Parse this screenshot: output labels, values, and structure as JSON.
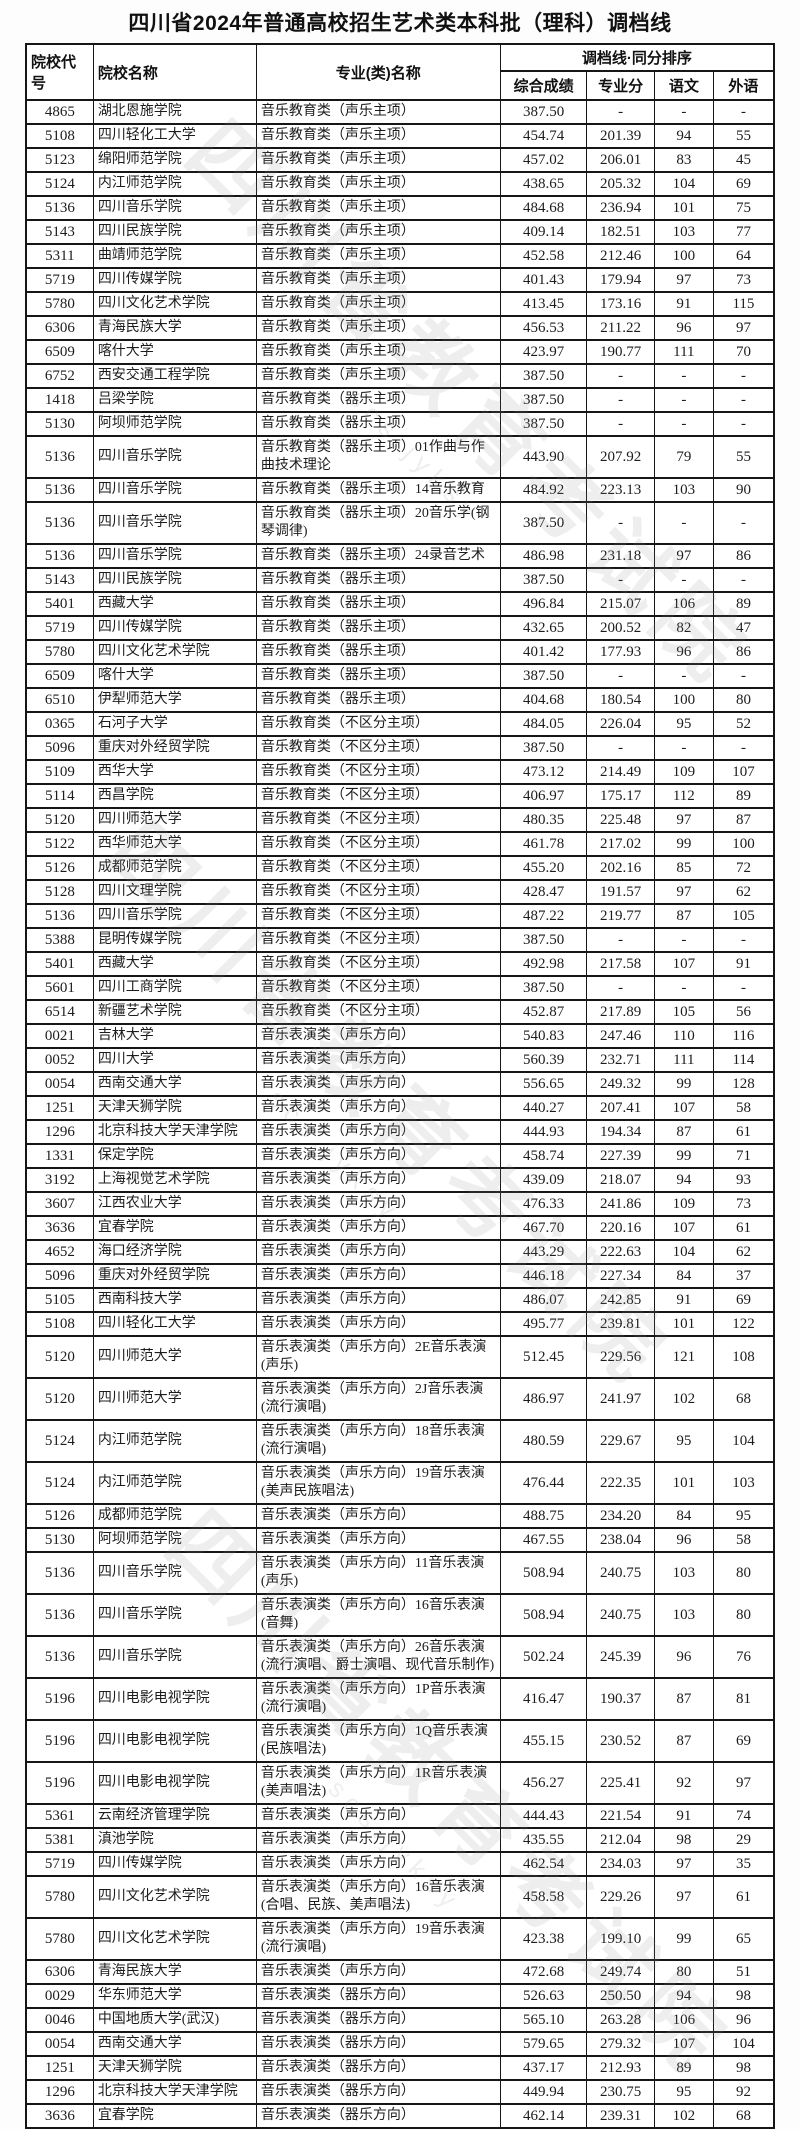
{
  "page": {
    "title": "四川省2024年普通高校招生艺术类本科批（理科）调档线"
  },
  "watermark": {
    "cn": "四川省教育考试院",
    "en": "scs.jyksy"
  },
  "table": {
    "headers": {
      "col_code": "院校代号",
      "col_name": "院校名称",
      "col_major": "专业(类)名称",
      "group": "调档线·同分排序",
      "sub": [
        "综合成绩",
        "专业分",
        "语文",
        "外语"
      ]
    },
    "rows": [
      [
        "4865",
        "湖北恩施学院",
        "音乐教育类（声乐主项）",
        "387.50",
        "-",
        "-",
        "-"
      ],
      [
        "5108",
        "四川轻化工大学",
        "音乐教育类（声乐主项）",
        "454.74",
        "201.39",
        "94",
        "55"
      ],
      [
        "5123",
        "绵阳师范学院",
        "音乐教育类（声乐主项）",
        "457.02",
        "206.01",
        "83",
        "45"
      ],
      [
        "5124",
        "内江师范学院",
        "音乐教育类（声乐主项）",
        "438.65",
        "205.32",
        "104",
        "69"
      ],
      [
        "5136",
        "四川音乐学院",
        "音乐教育类（声乐主项）",
        "484.68",
        "236.94",
        "101",
        "75"
      ],
      [
        "5143",
        "四川民族学院",
        "音乐教育类（声乐主项）",
        "409.14",
        "182.51",
        "103",
        "77"
      ],
      [
        "5311",
        "曲靖师范学院",
        "音乐教育类（声乐主项）",
        "452.58",
        "212.46",
        "100",
        "64"
      ],
      [
        "5719",
        "四川传媒学院",
        "音乐教育类（声乐主项）",
        "401.43",
        "179.94",
        "97",
        "73"
      ],
      [
        "5780",
        "四川文化艺术学院",
        "音乐教育类（声乐主项）",
        "413.45",
        "173.16",
        "91",
        "115"
      ],
      [
        "6306",
        "青海民族大学",
        "音乐教育类（声乐主项）",
        "456.53",
        "211.22",
        "96",
        "97"
      ],
      [
        "6509",
        "喀什大学",
        "音乐教育类（声乐主项）",
        "423.97",
        "190.77",
        "111",
        "70"
      ],
      [
        "6752",
        "西安交通工程学院",
        "音乐教育类（声乐主项）",
        "387.50",
        "-",
        "-",
        "-"
      ],
      [
        "1418",
        "吕梁学院",
        "音乐教育类（器乐主项）",
        "387.50",
        "-",
        "-",
        "-"
      ],
      [
        "5130",
        "阿坝师范学院",
        "音乐教育类（器乐主项）",
        "387.50",
        "-",
        "-",
        "-"
      ],
      [
        "5136",
        "四川音乐学院",
        "音乐教育类（器乐主项）01作曲与作曲技术理论",
        "443.90",
        "207.92",
        "79",
        "55"
      ],
      [
        "5136",
        "四川音乐学院",
        "音乐教育类（器乐主项）14音乐教育",
        "484.92",
        "223.13",
        "103",
        "90"
      ],
      [
        "5136",
        "四川音乐学院",
        "音乐教育类（器乐主项）20音乐学(钢琴调律)",
        "387.50",
        "-",
        "-",
        "-"
      ],
      [
        "5136",
        "四川音乐学院",
        "音乐教育类（器乐主项）24录音艺术",
        "486.98",
        "231.18",
        "97",
        "86"
      ],
      [
        "5143",
        "四川民族学院",
        "音乐教育类（器乐主项）",
        "387.50",
        "-",
        "-",
        "-"
      ],
      [
        "5401",
        "西藏大学",
        "音乐教育类（器乐主项）",
        "496.84",
        "215.07",
        "106",
        "89"
      ],
      [
        "5719",
        "四川传媒学院",
        "音乐教育类（器乐主项）",
        "432.65",
        "200.52",
        "82",
        "47"
      ],
      [
        "5780",
        "四川文化艺术学院",
        "音乐教育类（器乐主项）",
        "401.42",
        "177.93",
        "96",
        "86"
      ],
      [
        "6509",
        "喀什大学",
        "音乐教育类（器乐主项）",
        "387.50",
        "-",
        "-",
        "-"
      ],
      [
        "6510",
        "伊犁师范大学",
        "音乐教育类（器乐主项）",
        "404.68",
        "180.54",
        "100",
        "80"
      ],
      [
        "0365",
        "石河子大学",
        "音乐教育类（不区分主项）",
        "484.05",
        "226.04",
        "95",
        "52"
      ],
      [
        "5096",
        "重庆对外经贸学院",
        "音乐教育类（不区分主项）",
        "387.50",
        "-",
        "-",
        "-"
      ],
      [
        "5109",
        "西华大学",
        "音乐教育类（不区分主项）",
        "473.12",
        "214.49",
        "109",
        "107"
      ],
      [
        "5114",
        "西昌学院",
        "音乐教育类（不区分主项）",
        "406.97",
        "175.17",
        "112",
        "89"
      ],
      [
        "5120",
        "四川师范大学",
        "音乐教育类（不区分主项）",
        "480.35",
        "225.48",
        "97",
        "87"
      ],
      [
        "5122",
        "西华师范大学",
        "音乐教育类（不区分主项）",
        "461.78",
        "217.02",
        "99",
        "100"
      ],
      [
        "5126",
        "成都师范学院",
        "音乐教育类（不区分主项）",
        "455.20",
        "202.16",
        "85",
        "72"
      ],
      [
        "5128",
        "四川文理学院",
        "音乐教育类（不区分主项）",
        "428.47",
        "191.57",
        "97",
        "62"
      ],
      [
        "5136",
        "四川音乐学院",
        "音乐教育类（不区分主项）",
        "487.22",
        "219.77",
        "87",
        "105"
      ],
      [
        "5388",
        "昆明传媒学院",
        "音乐教育类（不区分主项）",
        "387.50",
        "-",
        "-",
        "-"
      ],
      [
        "5401",
        "西藏大学",
        "音乐教育类（不区分主项）",
        "492.98",
        "217.58",
        "107",
        "91"
      ],
      [
        "5601",
        "四川工商学院",
        "音乐教育类（不区分主项）",
        "387.50",
        "-",
        "-",
        "-"
      ],
      [
        "6514",
        "新疆艺术学院",
        "音乐教育类（不区分主项）",
        "452.87",
        "217.89",
        "105",
        "56"
      ],
      [
        "0021",
        "吉林大学",
        "音乐表演类（声乐方向）",
        "540.83",
        "247.46",
        "110",
        "116"
      ],
      [
        "0052",
        "四川大学",
        "音乐表演类（声乐方向）",
        "560.39",
        "232.71",
        "111",
        "114"
      ],
      [
        "0054",
        "西南交通大学",
        "音乐表演类（声乐方向）",
        "556.65",
        "249.32",
        "99",
        "128"
      ],
      [
        "1251",
        "天津天狮学院",
        "音乐表演类（声乐方向）",
        "440.27",
        "207.41",
        "107",
        "58"
      ],
      [
        "1296",
        "北京科技大学天津学院",
        "音乐表演类（声乐方向）",
        "444.93",
        "194.34",
        "87",
        "61"
      ],
      [
        "1331",
        "保定学院",
        "音乐表演类（声乐方向）",
        "458.74",
        "227.39",
        "99",
        "71"
      ],
      [
        "3192",
        "上海视觉艺术学院",
        "音乐表演类（声乐方向）",
        "439.09",
        "218.07",
        "94",
        "93"
      ],
      [
        "3607",
        "江西农业大学",
        "音乐表演类（声乐方向）",
        "476.33",
        "241.86",
        "109",
        "73"
      ],
      [
        "3636",
        "宜春学院",
        "音乐表演类（声乐方向）",
        "467.70",
        "220.16",
        "107",
        "61"
      ],
      [
        "4652",
        "海口经济学院",
        "音乐表演类（声乐方向）",
        "443.29",
        "222.63",
        "104",
        "62"
      ],
      [
        "5096",
        "重庆对外经贸学院",
        "音乐表演类（声乐方向）",
        "446.18",
        "227.34",
        "84",
        "37"
      ],
      [
        "5105",
        "西南科技大学",
        "音乐表演类（声乐方向）",
        "486.07",
        "242.85",
        "91",
        "69"
      ],
      [
        "5108",
        "四川轻化工大学",
        "音乐表演类（声乐方向）",
        "495.77",
        "239.81",
        "101",
        "122"
      ],
      [
        "5120",
        "四川师范大学",
        "音乐表演类（声乐方向）2E音乐表演(声乐)",
        "512.45",
        "229.56",
        "121",
        "108"
      ],
      [
        "5120",
        "四川师范大学",
        "音乐表演类（声乐方向）2J音乐表演(流行演唱)",
        "486.97",
        "241.97",
        "102",
        "68"
      ],
      [
        "5124",
        "内江师范学院",
        "音乐表演类（声乐方向）18音乐表演(流行演唱)",
        "480.59",
        "229.67",
        "95",
        "104"
      ],
      [
        "5124",
        "内江师范学院",
        "音乐表演类（声乐方向）19音乐表演(美声民族唱法)",
        "476.44",
        "222.35",
        "101",
        "103"
      ],
      [
        "5126",
        "成都师范学院",
        "音乐表演类（声乐方向）",
        "488.75",
        "234.20",
        "84",
        "95"
      ],
      [
        "5130",
        "阿坝师范学院",
        "音乐表演类（声乐方向）",
        "467.55",
        "238.04",
        "96",
        "58"
      ],
      [
        "5136",
        "四川音乐学院",
        "音乐表演类（声乐方向）11音乐表演(声乐)",
        "508.94",
        "240.75",
        "103",
        "80"
      ],
      [
        "5136",
        "四川音乐学院",
        "音乐表演类（声乐方向）16音乐表演(音舞)",
        "508.94",
        "240.75",
        "103",
        "80"
      ],
      [
        "5136",
        "四川音乐学院",
        "音乐表演类（声乐方向）26音乐表演(流行演唱、爵士演唱、现代音乐制作)",
        "502.24",
        "245.39",
        "96",
        "76"
      ],
      [
        "5196",
        "四川电影电视学院",
        "音乐表演类（声乐方向）1P音乐表演(流行演唱)",
        "416.47",
        "190.37",
        "87",
        "81"
      ],
      [
        "5196",
        "四川电影电视学院",
        "音乐表演类（声乐方向）1Q音乐表演(民族唱法)",
        "455.15",
        "230.52",
        "87",
        "69"
      ],
      [
        "5196",
        "四川电影电视学院",
        "音乐表演类（声乐方向）1R音乐表演(美声唱法)",
        "456.27",
        "225.41",
        "92",
        "97"
      ],
      [
        "5361",
        "云南经济管理学院",
        "音乐表演类（声乐方向）",
        "444.43",
        "221.54",
        "91",
        "74"
      ],
      [
        "5381",
        "滇池学院",
        "音乐表演类（声乐方向）",
        "435.55",
        "212.04",
        "98",
        "29"
      ],
      [
        "5719",
        "四川传媒学院",
        "音乐表演类（声乐方向）",
        "462.54",
        "234.03",
        "97",
        "35"
      ],
      [
        "5780",
        "四川文化艺术学院",
        "音乐表演类（声乐方向）16音乐表演(合唱、民族、美声唱法)",
        "458.58",
        "229.26",
        "97",
        "61"
      ],
      [
        "5780",
        "四川文化艺术学院",
        "音乐表演类（声乐方向）19音乐表演(流行演唱)",
        "423.38",
        "199.10",
        "99",
        "65"
      ],
      [
        "6306",
        "青海民族大学",
        "音乐表演类（声乐方向）",
        "472.68",
        "249.74",
        "80",
        "51"
      ],
      [
        "0029",
        "华东师范大学",
        "音乐表演类（器乐方向）",
        "526.63",
        "250.50",
        "94",
        "98"
      ],
      [
        "0046",
        "中国地质大学(武汉)",
        "音乐表演类（器乐方向）",
        "565.10",
        "263.28",
        "106",
        "96"
      ],
      [
        "0054",
        "西南交通大学",
        "音乐表演类（器乐方向）",
        "579.65",
        "279.32",
        "107",
        "104"
      ],
      [
        "1251",
        "天津天狮学院",
        "音乐表演类（器乐方向）",
        "437.17",
        "212.93",
        "89",
        "98"
      ],
      [
        "1296",
        "北京科技大学天津学院",
        "音乐表演类（器乐方向）",
        "449.94",
        "230.75",
        "95",
        "92"
      ],
      [
        "3636",
        "宜春学院",
        "音乐表演类（器乐方向）",
        "462.14",
        "239.31",
        "102",
        "68"
      ]
    ]
  }
}
